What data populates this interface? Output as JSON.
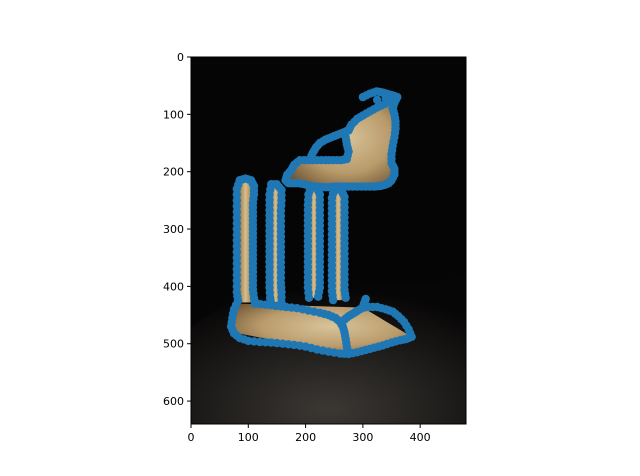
{
  "chart_data": {
    "type": "scatter",
    "title": "",
    "xlabel": "",
    "ylabel": "",
    "xlim": [
      0,
      480
    ],
    "ylim": [
      640,
      0
    ],
    "y_axis_inverted": true,
    "x_ticks": [
      0,
      100,
      200,
      300,
      400
    ],
    "y_ticks": [
      0,
      100,
      200,
      300,
      400,
      500,
      600
    ],
    "x_tick_labels": [
      "0",
      "100",
      "200",
      "300",
      "400"
    ],
    "y_tick_labels": [
      "0",
      "100",
      "200",
      "300",
      "400",
      "500",
      "600"
    ],
    "grid": false,
    "legend": "none",
    "background_image": {
      "content": "photograph of a small model of a Greek temple ruin (columns and entablature) on a dark draped cloth",
      "colors": {
        "background": "#060505",
        "stone": "#c9a874",
        "stone_shadow": "#6f5532",
        "stone_light": "#e8d3a6",
        "cloth": "#1e1c1a"
      }
    },
    "series": [
      {
        "color": "#1f77b4",
        "outlines": [
          [
            [
              275,
              128
            ],
            [
              280,
              118
            ],
            [
              290,
              108
            ],
            [
              300,
              102
            ],
            [
              312,
              95
            ],
            [
              325,
              88
            ],
            [
              338,
              82
            ],
            [
              350,
              76
            ],
            [
              360,
              70
            ],
            [
              355,
              80
            ],
            [
              352,
              90
            ],
            [
              355,
              100
            ],
            [
              357,
              112
            ],
            [
              357,
              125
            ],
            [
              355,
              140
            ],
            [
              352,
              155
            ],
            [
              350,
              170
            ],
            [
              350,
              185
            ],
            [
              355,
              195
            ],
            [
              355,
              205
            ],
            [
              350,
              215
            ],
            [
              345,
              220
            ],
            [
              338,
              223
            ],
            [
              330,
              225
            ],
            [
              320,
              226
            ],
            [
              305,
              226
            ],
            [
              290,
              226
            ],
            [
              275,
              226
            ],
            [
              262,
              226
            ],
            [
              250,
              226
            ],
            [
              240,
              227
            ],
            [
              230,
              227
            ],
            [
              220,
              226
            ],
            [
              208,
              225
            ],
            [
              198,
              222
            ],
            [
              186,
              220
            ],
            [
              178,
              220
            ],
            [
              170,
              220
            ],
            [
              165,
              215
            ],
            [
              168,
              205
            ],
            [
              175,
              197
            ],
            [
              180,
              188
            ],
            [
              190,
              180
            ],
            [
              205,
              180
            ],
            [
              220,
              180
            ],
            [
              235,
              180
            ],
            [
              248,
              180
            ],
            [
              262,
              180
            ],
            [
              272,
              178
            ],
            [
              275,
              165
            ],
            [
              272,
              152
            ],
            [
              270,
              140
            ]
          ],
          [
            [
              300,
              70
            ],
            [
              312,
              64
            ],
            [
              324,
              60
            ],
            [
              335,
              62
            ],
            [
              345,
              65
            ],
            [
              355,
              68
            ],
            [
              325,
              75
            ]
          ],
          [
            [
              275,
              128
            ],
            [
              265,
              132
            ],
            [
              255,
              136
            ],
            [
              245,
              140
            ],
            [
              235,
              144
            ],
            [
              225,
              150
            ],
            [
              218,
              158
            ],
            [
              212,
              168
            ],
            [
              208,
              178
            ]
          ],
          [
            [
              85,
              215
            ],
            [
              95,
              212
            ],
            [
              105,
              215
            ],
            [
              110,
              225
            ],
            [
              110,
              240
            ],
            [
              108,
              255
            ],
            [
              108,
              270
            ],
            [
              108,
              285
            ],
            [
              108,
              300
            ],
            [
              108,
              315
            ],
            [
              108,
              330
            ],
            [
              108,
              345
            ],
            [
              108,
              360
            ],
            [
              108,
              375
            ],
            [
              108,
              390
            ],
            [
              108,
              405
            ],
            [
              110,
              420
            ],
            [
              112,
              430
            ]
          ],
          [
            [
              85,
              215
            ],
            [
              80,
              230
            ],
            [
              80,
              250
            ],
            [
              80,
              270
            ],
            [
              80,
              290
            ],
            [
              80,
              310
            ],
            [
              80,
              330
            ],
            [
              80,
              350
            ],
            [
              80,
              370
            ],
            [
              80,
              390
            ],
            [
              80,
              410
            ],
            [
              82,
              425
            ]
          ],
          [
            [
              140,
              222
            ],
            [
              150,
              222
            ],
            [
              158,
              232
            ],
            [
              158,
              250
            ],
            [
              157,
              268
            ],
            [
              157,
              286
            ],
            [
              157,
              304
            ],
            [
              157,
              322
            ],
            [
              157,
              340
            ],
            [
              157,
              358
            ],
            [
              157,
              376
            ],
            [
              157,
              394
            ],
            [
              158,
              410
            ],
            [
              158,
              428
            ]
          ],
          [
            [
              140,
              222
            ],
            [
              137,
              240
            ],
            [
              137,
              258
            ],
            [
              137,
              276
            ],
            [
              137,
              294
            ],
            [
              137,
              312
            ],
            [
              137,
              330
            ],
            [
              137,
              348
            ],
            [
              137,
              366
            ],
            [
              137,
              384
            ],
            [
              137,
              402
            ],
            [
              138,
              420
            ],
            [
              140,
              430
            ]
          ],
          [
            [
              210,
              226
            ],
            [
              220,
              228
            ],
            [
              225,
              240
            ],
            [
              225,
              258
            ],
            [
              225,
              276
            ],
            [
              225,
              294
            ],
            [
              225,
              312
            ],
            [
              225,
              330
            ],
            [
              225,
              348
            ],
            [
              225,
              366
            ],
            [
              225,
              384
            ],
            [
              225,
              402
            ],
            [
              222,
              418
            ]
          ],
          [
            [
              210,
              226
            ],
            [
              205,
              240
            ],
            [
              204,
              258
            ],
            [
              204,
              276
            ],
            [
              204,
              294
            ],
            [
              204,
              312
            ],
            [
              204,
              330
            ],
            [
              204,
              348
            ],
            [
              204,
              366
            ],
            [
              204,
              384
            ],
            [
              204,
              402
            ],
            [
              206,
              420
            ]
          ],
          [
            [
              250,
              230
            ],
            [
              262,
              232
            ],
            [
              268,
              244
            ],
            [
              268,
              262
            ],
            [
              268,
              280
            ],
            [
              268,
              298
            ],
            [
              268,
              316
            ],
            [
              268,
              334
            ],
            [
              268,
              352
            ],
            [
              268,
              370
            ],
            [
              268,
              388
            ],
            [
              268,
              406
            ],
            [
              270,
              420
            ]
          ],
          [
            [
              250,
              230
            ],
            [
              246,
              246
            ],
            [
              246,
              264
            ],
            [
              246,
              282
            ],
            [
              246,
              300
            ],
            [
              246,
              318
            ],
            [
              246,
              336
            ],
            [
              246,
              354
            ],
            [
              246,
              372
            ],
            [
              246,
              390
            ],
            [
              246,
              408
            ],
            [
              248,
              424
            ]
          ],
          [
            [
              82,
              425
            ],
            [
              75,
              440
            ],
            [
              72,
              455
            ],
            [
              70,
              470
            ],
            [
              75,
              482
            ],
            [
              85,
              490
            ],
            [
              100,
              495
            ],
            [
              120,
              497
            ],
            [
              140,
              498
            ],
            [
              160,
              500
            ],
            [
              180,
              502
            ],
            [
              200,
              505
            ],
            [
              220,
              510
            ],
            [
              240,
              514
            ],
            [
              260,
              517
            ],
            [
              275,
              518
            ],
            [
              290,
              515
            ],
            [
              305,
              511
            ],
            [
              320,
              507
            ],
            [
              335,
              503
            ],
            [
              350,
              498
            ],
            [
              365,
              494
            ],
            [
              375,
              492
            ],
            [
              385,
              488
            ]
          ],
          [
            [
              385,
              488
            ],
            [
              380,
              475
            ],
            [
              372,
              462
            ],
            [
              362,
              452
            ],
            [
              352,
              444
            ],
            [
              340,
              440
            ],
            [
              325,
              436
            ],
            [
              310,
              436
            ],
            [
              300,
              437
            ]
          ],
          [
            [
              112,
              430
            ],
            [
              130,
              432
            ],
            [
              148,
              434
            ],
            [
              166,
              436
            ],
            [
              185,
              438
            ],
            [
              205,
              442
            ],
            [
              225,
              446
            ],
            [
              240,
              450
            ],
            [
              252,
              455
            ],
            [
              260,
              462
            ],
            [
              265,
              470
            ],
            [
              268,
              480
            ],
            [
              270,
              492
            ],
            [
              272,
              505
            ],
            [
              274,
              516
            ]
          ],
          [
            [
              300,
              437
            ],
            [
              290,
              443
            ],
            [
              282,
              448
            ],
            [
              275,
              452
            ],
            [
              268,
              458
            ]
          ],
          [
            [
              300,
              437
            ],
            [
              302,
              430
            ],
            [
              305,
              422
            ]
          ]
        ]
      }
    ]
  }
}
